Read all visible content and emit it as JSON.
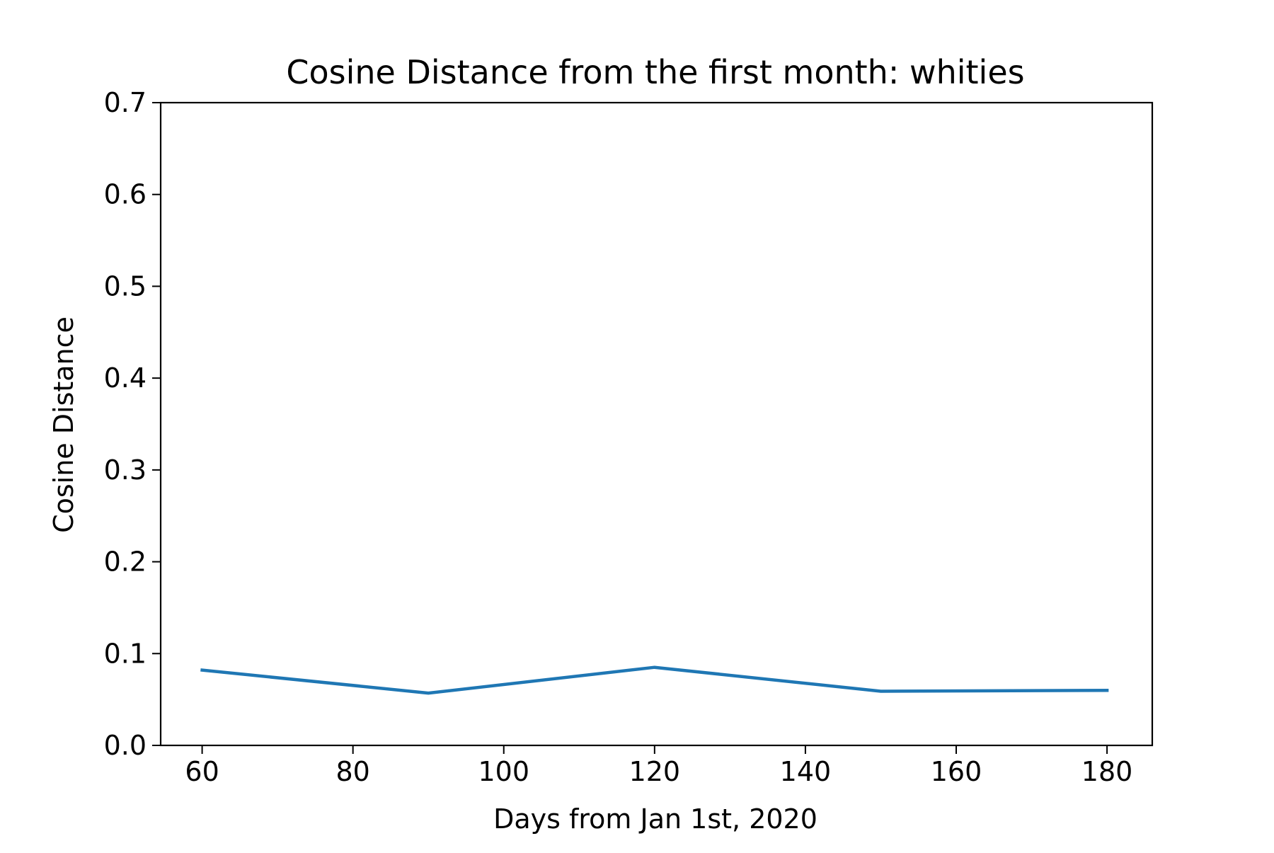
{
  "chart_data": {
    "type": "line",
    "title": "Cosine Distance from the first month: whities",
    "xlabel": "Days from Jan 1st, 2020",
    "ylabel": "Cosine Distance",
    "xlim": [
      54.5,
      186
    ],
    "ylim": [
      0.0,
      0.7
    ],
    "xticks": [
      60,
      80,
      100,
      120,
      140,
      160,
      180
    ],
    "xtick_labels": [
      "60",
      "80",
      "100",
      "120",
      "140",
      "160",
      "180"
    ],
    "yticks": [
      0.0,
      0.1,
      0.2,
      0.3,
      0.4,
      0.5,
      0.6,
      0.7
    ],
    "ytick_labels": [
      "0.0",
      "0.1",
      "0.2",
      "0.3",
      "0.4",
      "0.5",
      "0.6",
      "0.7"
    ],
    "grid": false,
    "series": [
      {
        "color": "#1f77b4",
        "x": [
          60,
          90,
          120,
          150,
          180
        ],
        "y": [
          0.082,
          0.057,
          0.085,
          0.059,
          0.06
        ]
      }
    ]
  }
}
